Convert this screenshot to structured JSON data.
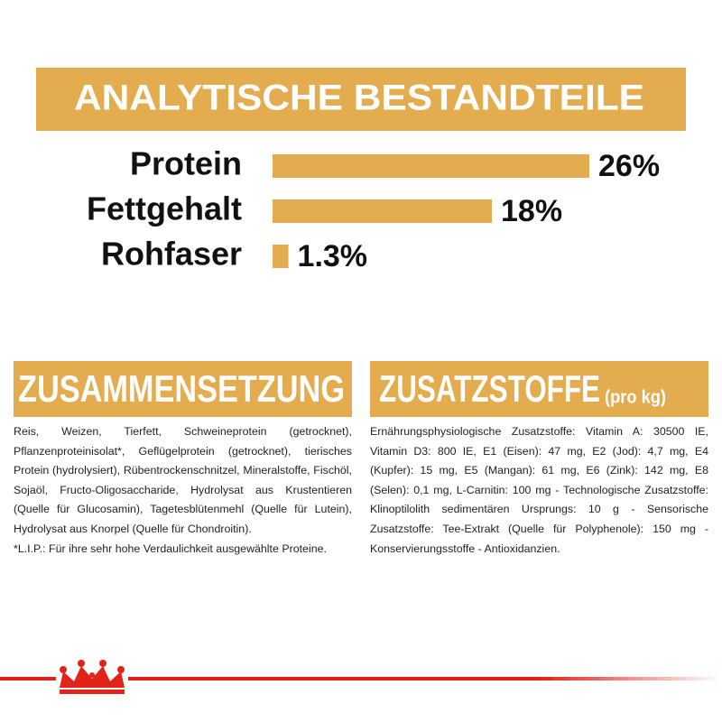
{
  "header": {
    "title": "ANALYTISCHE BESTANDTEILE"
  },
  "chart_data": {
    "type": "bar",
    "orientation": "horizontal",
    "categories": [
      "Protein",
      "Fettgehalt",
      "Rohfaser"
    ],
    "values": [
      26,
      18,
      1.3
    ],
    "value_labels": [
      "26%",
      "18%",
      "1.3%"
    ],
    "color": "#e3ac4e"
  },
  "sections": [
    {
      "title": "ZUSAMMENSETZUNG",
      "text": "Reis, Weizen, Tierfett, Schweineprotein (getrocknet), Pflanzenproteinisolat*, Geflügelprotein (getrocknet), tierisches Protein (hydrolysiert), Rübentrockenschnitzel, Mineralstoffe, Fischöl, Sojaöl, Fructo-Oligosaccharide, Hydrolysat aus Krustentieren (Quelle für Glucosamin), Tagetesblütenmehl (Quelle für Lutein), Hydrolysat aus Knorpel (Quelle für Chondroitin).",
      "note": "*L.I.P.: Für ihre sehr hohe Verdaulichkeit ausgewählte Proteine."
    },
    {
      "title": "ZUSATZSTOFFE",
      "subtitle": "(pro kg)",
      "text": "Ernährungsphysiologische Zusatzstoffe: Vitamin A: 30500 IE, Vitamin D3: 800 IE, E1 (Eisen): 47 mg, E2 (Jod): 4,7 mg, E4 (Kupfer): 15 mg, E5 (Mangan): 61 mg, E6 (Zink): 142 mg, E8 (Selen): 0,1 mg, L-Carnitin: 100 mg - Technologische Zusatzstoffe: Klinoptilolith sedimentären Ursprungs: 10 g - Sensorische Zusatzstoffe: Tee-Extrakt (Quelle für Polyphenole): 150 mg - Konservierungsstoffe - Antioxidanzien."
    }
  ]
}
